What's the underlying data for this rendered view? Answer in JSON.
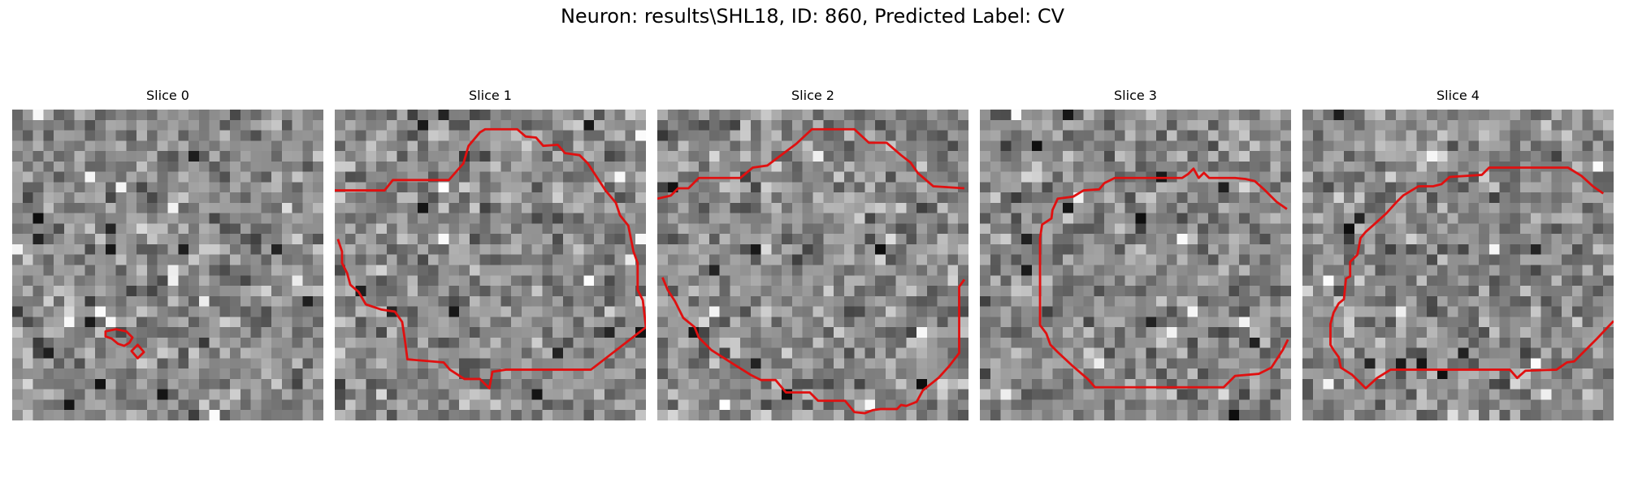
{
  "figure": {
    "title": "Neuron: results\\SHL18, ID: 860, Predicted Label: CV"
  },
  "overlay_color": "#e01010",
  "colormap": "grayscale",
  "panels": [
    {
      "title": "Slice 0"
    },
    {
      "title": "Slice 1"
    },
    {
      "title": "Slice 2"
    },
    {
      "title": "Slice 3"
    },
    {
      "title": "Slice 4"
    }
  ]
}
